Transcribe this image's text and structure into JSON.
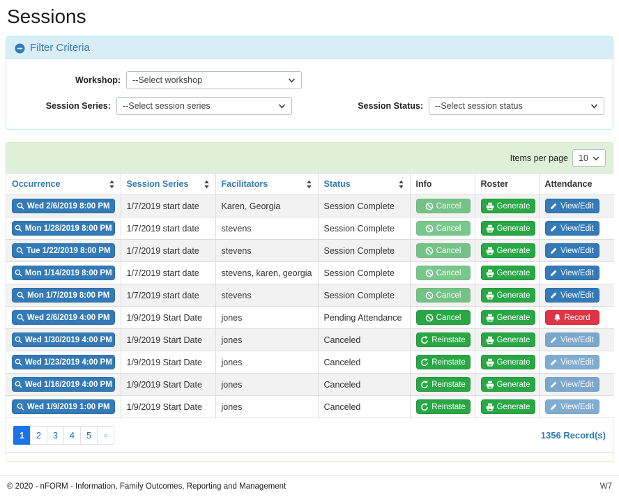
{
  "page": {
    "title": "Sessions",
    "footer": {
      "copyright": "© 2020 - nFORM - Information, Family Outcomes, Reporting and Management",
      "version": "W7"
    }
  },
  "filter": {
    "title": "Filter Criteria",
    "collapse_icon": "minus-circle-icon",
    "fields": [
      {
        "id": "workshop",
        "label": "Workshop:",
        "value": "--Select workshop"
      },
      {
        "id": "session-series",
        "label": "Session Series:",
        "value": "--Select session series"
      },
      {
        "id": "session-status",
        "label": "Session Status:",
        "value": "--Select session status"
      }
    ]
  },
  "table": {
    "items_per_page_label": "Items per page",
    "items_per_page_value": "10",
    "columns": [
      {
        "label": "Occurrence",
        "sortable": true
      },
      {
        "label": "Session Series",
        "sortable": true
      },
      {
        "label": "Facilitators",
        "sortable": true
      },
      {
        "label": "Status",
        "sortable": true
      },
      {
        "label": "Info",
        "sortable": false
      },
      {
        "label": "Roster",
        "sortable": false
      },
      {
        "label": "Attendance",
        "sortable": false
      }
    ],
    "rows": [
      {
        "occurrence": {
          "label": "Wed 2/6/2019 8:00 PM",
          "icon": "search-icon"
        },
        "session_series": "1/7/2019 start date",
        "facilitators": "Karen, Georgia",
        "status": "Session Complete",
        "info": {
          "label": "Cancel",
          "icon": "ban-icon",
          "variant": "success",
          "disabled": true
        },
        "roster": {
          "label": "Generate",
          "icon": "printer-icon",
          "variant": "success",
          "disabled": false
        },
        "attendance": {
          "label": "View/Edit",
          "icon": "pencil-icon",
          "variant": "primary",
          "disabled": false
        }
      },
      {
        "occurrence": {
          "label": "Mon 1/28/2019 8:00 PM",
          "icon": "search-icon"
        },
        "session_series": "1/7/2019 start date",
        "facilitators": "stevens",
        "status": "Session Complete",
        "info": {
          "label": "Cancel",
          "icon": "ban-icon",
          "variant": "success",
          "disabled": true
        },
        "roster": {
          "label": "Generate",
          "icon": "printer-icon",
          "variant": "success",
          "disabled": false
        },
        "attendance": {
          "label": "View/Edit",
          "icon": "pencil-icon",
          "variant": "primary",
          "disabled": false
        }
      },
      {
        "occurrence": {
          "label": "Tue 1/22/2019 8:00 PM",
          "icon": "search-icon"
        },
        "session_series": "1/7/2019 start date",
        "facilitators": "stevens",
        "status": "Session Complete",
        "info": {
          "label": "Cancel",
          "icon": "ban-icon",
          "variant": "success",
          "disabled": true
        },
        "roster": {
          "label": "Generate",
          "icon": "printer-icon",
          "variant": "success",
          "disabled": false
        },
        "attendance": {
          "label": "View/Edit",
          "icon": "pencil-icon",
          "variant": "primary",
          "disabled": false
        }
      },
      {
        "occurrence": {
          "label": "Mon 1/14/2019 8:00 PM",
          "icon": "search-icon"
        },
        "session_series": "1/7/2019 start date",
        "facilitators": "stevens, karen, georgia",
        "status": "Session Complete",
        "info": {
          "label": "Cancel",
          "icon": "ban-icon",
          "variant": "success",
          "disabled": true
        },
        "roster": {
          "label": "Generate",
          "icon": "printer-icon",
          "variant": "success",
          "disabled": false
        },
        "attendance": {
          "label": "View/Edit",
          "icon": "pencil-icon",
          "variant": "primary",
          "disabled": false
        }
      },
      {
        "occurrence": {
          "label": "Mon 1/7/2019 8:00 PM",
          "icon": "search-icon"
        },
        "session_series": "1/7/2019 start date",
        "facilitators": "stevens",
        "status": "Session Complete",
        "info": {
          "label": "Cancel",
          "icon": "ban-icon",
          "variant": "success",
          "disabled": true
        },
        "roster": {
          "label": "Generate",
          "icon": "printer-icon",
          "variant": "success",
          "disabled": false
        },
        "attendance": {
          "label": "View/Edit",
          "icon": "pencil-icon",
          "variant": "primary",
          "disabled": false
        }
      },
      {
        "occurrence": {
          "label": "Wed 2/6/2019 4:00 PM",
          "icon": "search-icon"
        },
        "session_series": "1/9/2019 Start Date",
        "facilitators": "jones",
        "status": "Pending Attendance",
        "info": {
          "label": "Cancel",
          "icon": "ban-icon",
          "variant": "success",
          "disabled": false
        },
        "roster": {
          "label": "Generate",
          "icon": "printer-icon",
          "variant": "success",
          "disabled": false
        },
        "attendance": {
          "label": "Record",
          "icon": "bell-icon",
          "variant": "danger",
          "disabled": false
        }
      },
      {
        "occurrence": {
          "label": "Wed 1/30/2019 4:00 PM",
          "icon": "search-icon"
        },
        "session_series": "1/9/2019 Start Date",
        "facilitators": "jones",
        "status": "Canceled",
        "info": {
          "label": "Reinstate",
          "icon": "undo-icon",
          "variant": "success",
          "disabled": false
        },
        "roster": {
          "label": "Generate",
          "icon": "printer-icon",
          "variant": "success",
          "disabled": false
        },
        "attendance": {
          "label": "View/Edit",
          "icon": "pencil-icon",
          "variant": "primary",
          "disabled": true
        }
      },
      {
        "occurrence": {
          "label": "Wed 1/23/2019 4:00 PM",
          "icon": "search-icon"
        },
        "session_series": "1/9/2019 Start Date",
        "facilitators": "jones",
        "status": "Canceled",
        "info": {
          "label": "Reinstate",
          "icon": "undo-icon",
          "variant": "success",
          "disabled": false
        },
        "roster": {
          "label": "Generate",
          "icon": "printer-icon",
          "variant": "success",
          "disabled": false
        },
        "attendance": {
          "label": "View/Edit",
          "icon": "pencil-icon",
          "variant": "primary",
          "disabled": true
        }
      },
      {
        "occurrence": {
          "label": "Wed 1/16/2019 4:00 PM",
          "icon": "search-icon"
        },
        "session_series": "1/9/2019 Start Date",
        "facilitators": "jones",
        "status": "Canceled",
        "info": {
          "label": "Reinstate",
          "icon": "undo-icon",
          "variant": "success",
          "disabled": false
        },
        "roster": {
          "label": "Generate",
          "icon": "printer-icon",
          "variant": "success",
          "disabled": false
        },
        "attendance": {
          "label": "View/Edit",
          "icon": "pencil-icon",
          "variant": "primary",
          "disabled": true
        }
      },
      {
        "occurrence": {
          "label": "Wed 1/9/2019 1:00 PM",
          "icon": "search-icon"
        },
        "session_series": "1/9/2019 Start Date",
        "facilitators": "jones",
        "status": "Canceled",
        "info": {
          "label": "Reinstate",
          "icon": "undo-icon",
          "variant": "success",
          "disabled": false
        },
        "roster": {
          "label": "Generate",
          "icon": "printer-icon",
          "variant": "success",
          "disabled": false
        },
        "attendance": {
          "label": "View/Edit",
          "icon": "pencil-icon",
          "variant": "primary",
          "disabled": true
        }
      }
    ],
    "pagination": {
      "items": [
        {
          "label": "1",
          "active": true
        },
        {
          "label": "2",
          "active": false
        },
        {
          "label": "3",
          "active": false
        },
        {
          "label": "4",
          "active": false
        },
        {
          "label": "5",
          "active": false
        },
        {
          "label": "»",
          "active": false,
          "next": true
        }
      ]
    },
    "record_count": "1356 Record(s)"
  }
}
